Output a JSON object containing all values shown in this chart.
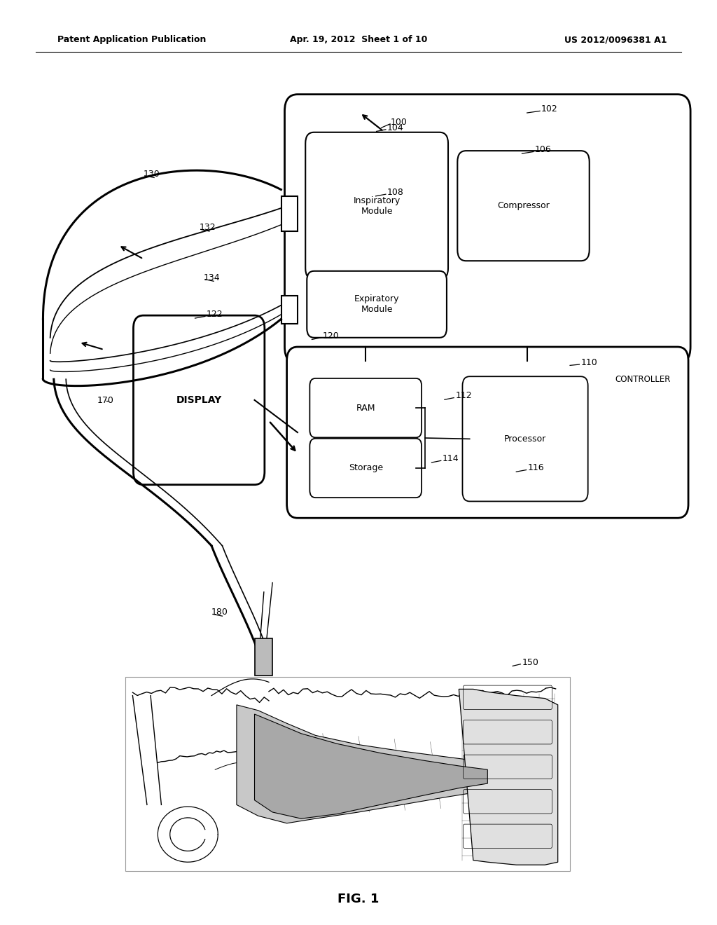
{
  "bg_color": "#ffffff",
  "header_left": "Patent Application Publication",
  "header_mid": "Apr. 19, 2012  Sheet 1 of 10",
  "header_right": "US 2012/0096381 A1",
  "figure_label": "FIG. 1"
}
